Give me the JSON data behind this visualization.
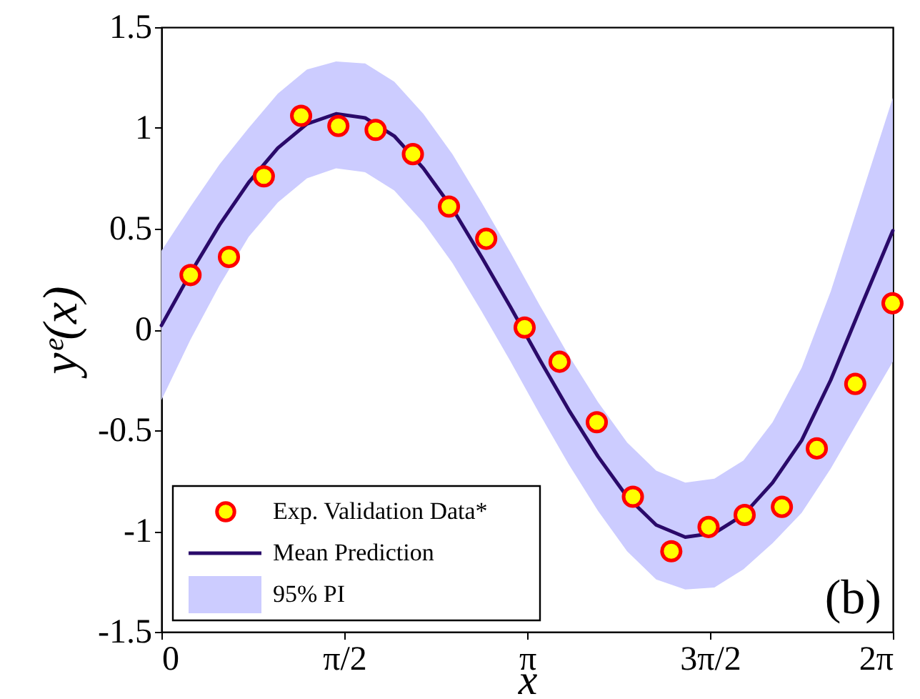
{
  "chart_data": {
    "type": "line",
    "xlabel": "x",
    "ylabel": "yᵉ(x)",
    "xlim": [
      0,
      6.283185
    ],
    "ylim": [
      -1.5,
      1.5
    ],
    "xticks": [
      {
        "value": 0,
        "label": "0"
      },
      {
        "value": 1.570796,
        "label": "π/2"
      },
      {
        "value": 3.141593,
        "label": "π"
      },
      {
        "value": 4.712389,
        "label": "3π/2"
      },
      {
        "value": 6.283185,
        "label": "2π"
      }
    ],
    "yticks": [
      -1.5,
      -1,
      -0.5,
      0,
      0.5,
      1,
      1.5
    ],
    "grid": false,
    "legend": "bottom left",
    "annotations": [
      "95% PI",
      "(b)"
    ],
    "series": [
      {
        "name": "Exp. Validation Data*",
        "type": "scatter",
        "marker": "circle",
        "color": "#ff0000",
        "x": [
          0.25,
          0.58,
          0.88,
          1.2,
          1.52,
          1.84,
          2.16,
          2.47,
          2.79,
          3.12,
          3.42,
          3.74,
          4.05,
          4.38,
          4.7,
          5.01,
          5.33,
          5.63,
          5.96,
          6.28
        ],
        "values": [
          0.27,
          0.36,
          0.76,
          1.06,
          1.01,
          0.99,
          0.87,
          0.61,
          0.45,
          0.01,
          -0.16,
          -0.46,
          -0.83,
          -1.1,
          -0.98,
          -0.92,
          -0.88,
          -0.59,
          -0.27,
          0.13
        ]
      },
      {
        "name": "Mean Prediction",
        "type": "line",
        "color": "#2a0a6a",
        "line_style": "solid",
        "x": [
          0,
          0.25,
          0.5,
          0.75,
          1.0,
          1.25,
          1.5,
          1.75,
          2.0,
          2.25,
          2.5,
          2.75,
          3.0,
          3.25,
          3.5,
          3.75,
          4.0,
          4.25,
          4.5,
          4.75,
          5.0,
          5.25,
          5.5,
          5.75,
          6.0,
          6.283
        ],
        "values": [
          0.02,
          0.28,
          0.52,
          0.73,
          0.9,
          1.02,
          1.07,
          1.05,
          0.96,
          0.8,
          0.6,
          0.36,
          0.11,
          -0.15,
          -0.4,
          -0.63,
          -0.83,
          -0.97,
          -1.03,
          -1.01,
          -0.92,
          -0.76,
          -0.55,
          -0.25,
          0.1,
          0.49
        ],
        "lower": [
          -0.35,
          -0.05,
          0.22,
          0.46,
          0.63,
          0.75,
          0.8,
          0.78,
          0.69,
          0.53,
          0.33,
          0.09,
          -0.16,
          -0.42,
          -0.67,
          -0.9,
          -1.1,
          -1.24,
          -1.29,
          -1.28,
          -1.19,
          -1.06,
          -0.91,
          -0.69,
          -0.44,
          -0.16
        ],
        "upper": [
          0.39,
          0.61,
          0.82,
          1.0,
          1.17,
          1.29,
          1.33,
          1.32,
          1.23,
          1.07,
          0.87,
          0.63,
          0.38,
          0.12,
          -0.13,
          -0.36,
          -0.56,
          -0.7,
          -0.76,
          -0.74,
          -0.65,
          -0.46,
          -0.19,
          0.19,
          0.64,
          1.15
        ]
      }
    ]
  }
}
